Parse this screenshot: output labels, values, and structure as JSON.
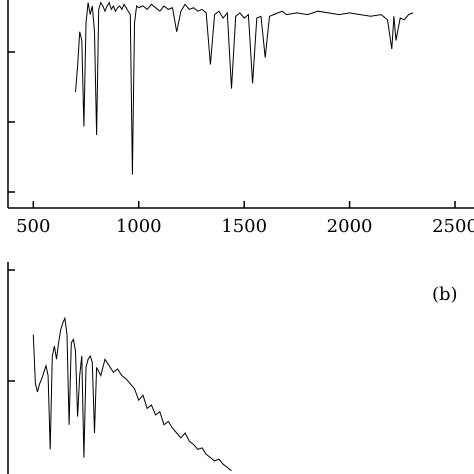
{
  "chart_data": [
    {
      "type": "line",
      "panel_label": "",
      "xlim": [
        380,
        2590
      ],
      "x_ticks": [
        500,
        1000,
        1500,
        2000,
        2500
      ],
      "x_tick_labels": [
        "500",
        "1000",
        "1500",
        "2000",
        "2500"
      ],
      "ylim": [
        0,
        1
      ],
      "series": [
        {
          "x": [
            700,
            710,
            720,
            730,
            740,
            750,
            760,
            770,
            780,
            790,
            800,
            810,
            820,
            830,
            840,
            850,
            860,
            870,
            880,
            890,
            900,
            910,
            920,
            930,
            940,
            950,
            960,
            970,
            980,
            990,
            1000,
            1020,
            1040,
            1060,
            1080,
            1100,
            1120,
            1140,
            1160,
            1180,
            1200,
            1220,
            1240,
            1260,
            1280,
            1300,
            1320,
            1340,
            1360,
            1380,
            1400,
            1420,
            1440,
            1460,
            1480,
            1500,
            1520,
            1540,
            1560,
            1580,
            1600,
            1620,
            1640,
            1660,
            1680,
            1700,
            1750,
            1800,
            1850,
            1900,
            1950,
            2000,
            2050,
            2100,
            2150,
            2180,
            2200,
            2210,
            2220,
            2240,
            2260,
            2280,
            2300
          ],
          "y": [
            0.5,
            0.65,
            0.85,
            0.8,
            0.3,
            0.9,
            1.02,
            0.95,
            1.0,
            0.85,
            0.25,
            0.98,
            1.02,
            1.0,
            0.97,
            1.0,
            1.02,
            0.98,
            1.0,
            0.97,
            0.99,
            1.0,
            0.98,
            1.01,
            0.99,
            0.97,
            0.95,
            0.02,
            0.9,
            1.0,
            0.99,
            1.0,
            0.98,
            1.01,
            0.99,
            0.97,
            1.0,
            0.98,
            0.99,
            0.85,
            0.97,
            1.01,
            0.98,
            0.99,
            0.97,
            0.98,
            0.96,
            0.66,
            0.95,
            0.97,
            0.93,
            0.96,
            0.52,
            0.94,
            0.96,
            0.93,
            0.95,
            0.55,
            0.93,
            0.94,
            0.7,
            0.94,
            0.95,
            0.96,
            0.97,
            0.95,
            0.96,
            0.95,
            0.97,
            0.96,
            0.95,
            0.96,
            0.95,
            0.94,
            0.95,
            0.92,
            0.75,
            0.94,
            0.8,
            0.93,
            0.92,
            0.95,
            0.96
          ]
        }
      ]
    },
    {
      "type": "line",
      "panel_label": "(b)",
      "xlim": [
        380,
        2590
      ],
      "ylim": [
        0,
        1
      ],
      "series": [
        {
          "x": [
            500,
            510,
            520,
            530,
            540,
            550,
            560,
            570,
            580,
            590,
            600,
            610,
            620,
            630,
            640,
            650,
            660,
            670,
            680,
            690,
            700,
            710,
            720,
            730,
            740,
            750,
            760,
            770,
            780,
            790,
            800,
            820,
            840,
            860,
            880,
            900,
            920,
            940,
            960,
            980,
            1000,
            1020,
            1040,
            1060,
            1080,
            1100,
            1120,
            1140,
            1160,
            1180,
            1200,
            1220,
            1240,
            1260,
            1280,
            1300,
            1320,
            1340,
            1360,
            1380,
            1400,
            1420,
            1440
          ],
          "y": [
            0.85,
            0.55,
            0.5,
            0.55,
            0.58,
            0.62,
            0.66,
            0.6,
            0.15,
            0.72,
            0.78,
            0.7,
            0.8,
            0.88,
            0.92,
            0.95,
            0.85,
            0.3,
            0.8,
            0.82,
            0.75,
            0.35,
            0.6,
            0.72,
            0.1,
            0.65,
            0.7,
            0.72,
            0.68,
            0.25,
            0.65,
            0.6,
            0.7,
            0.66,
            0.62,
            0.64,
            0.6,
            0.58,
            0.55,
            0.52,
            0.45,
            0.48,
            0.4,
            0.42,
            0.36,
            0.38,
            0.3,
            0.32,
            0.28,
            0.25,
            0.22,
            0.25,
            0.2,
            0.18,
            0.15,
            0.16,
            0.12,
            0.1,
            0.08,
            0.09,
            0.06,
            0.04,
            0.02
          ]
        }
      ]
    }
  ]
}
